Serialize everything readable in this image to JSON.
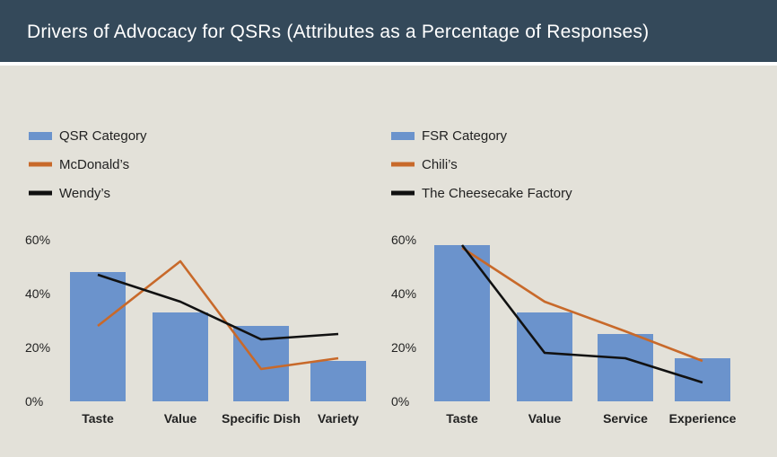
{
  "header": {
    "title": "Drivers of Advocacy for QSRs (Attributes as a Percentage of Responses)"
  },
  "colors": {
    "header_bg": "#34495a",
    "background": "#e3e1d9",
    "bar": "#6b93cc",
    "brand_line": "#c8692a",
    "competitor_line": "#111111"
  },
  "chart_data": [
    {
      "type": "bar",
      "categories": [
        "Taste",
        "Value",
        "Specific Dish",
        "Variety"
      ],
      "ylim": [
        0,
        60
      ],
      "yticks": [
        "0%",
        "20%",
        "40%",
        "60%"
      ],
      "legend": [
        "QSR Category",
        "McDonald’s",
        "Wendy’s"
      ],
      "series": [
        {
          "name": "QSR Category",
          "kind": "bar",
          "values": [
            48,
            33,
            28,
            15
          ]
        },
        {
          "name": "McDonald’s",
          "kind": "line",
          "values": [
            28,
            52,
            12,
            16
          ]
        },
        {
          "name": "Wendy’s",
          "kind": "line",
          "values": [
            47,
            37,
            23,
            25
          ]
        }
      ]
    },
    {
      "type": "bar",
      "categories": [
        "Taste",
        "Value",
        "Service",
        "Experience"
      ],
      "ylim": [
        0,
        60
      ],
      "yticks": [
        "0%",
        "20%",
        "40%",
        "60%"
      ],
      "legend": [
        "FSR Category",
        "Chili’s",
        "The Cheesecake Factory"
      ],
      "series": [
        {
          "name": "FSR Category",
          "kind": "bar",
          "values": [
            58,
            33,
            25,
            16
          ]
        },
        {
          "name": "Chili’s",
          "kind": "line",
          "values": [
            57,
            37,
            26,
            15
          ]
        },
        {
          "name": "The Cheesecake Factory",
          "kind": "line",
          "values": [
            58,
            18,
            16,
            7
          ]
        }
      ]
    }
  ]
}
